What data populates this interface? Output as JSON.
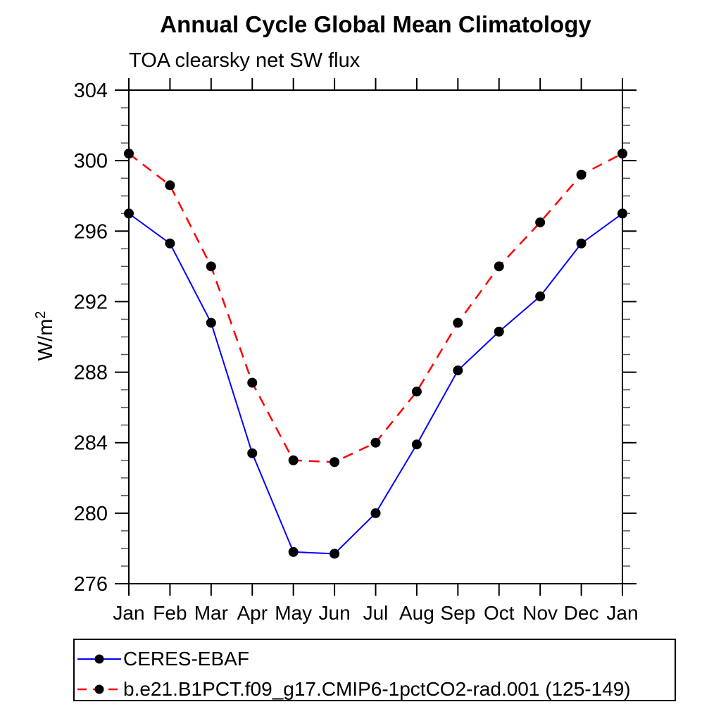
{
  "chart_data": {
    "type": "line",
    "title": "Annual Cycle Global Mean Climatology",
    "subtitle": "TOA clearsky net SW flux",
    "ylabel": "W/m²",
    "xlabel": "",
    "x_categories": [
      "Jan",
      "Feb",
      "Mar",
      "Apr",
      "May",
      "Jun",
      "Jul",
      "Aug",
      "Sep",
      "Oct",
      "Nov",
      "Dec",
      "Jan"
    ],
    "ylim": [
      276,
      304
    ],
    "ytick_major": [
      276,
      280,
      284,
      288,
      292,
      296,
      300,
      304
    ],
    "ytick_minor_step": 1,
    "grid": "off",
    "legend_position": "bottom-left",
    "series": [
      {
        "name": "CERES-EBAF",
        "color": "#0000ff",
        "line_style": "solid",
        "marker": "filled-circle",
        "marker_color": "#000000",
        "values": [
          297.0,
          295.3,
          290.8,
          283.4,
          277.8,
          277.7,
          280.0,
          283.9,
          288.1,
          290.3,
          292.3,
          295.3,
          297.0
        ]
      },
      {
        "name": "b.e21.B1PCT.f09_g17.CMIP6-1pctCO2-rad.001 (125-149)",
        "color": "#ff0000",
        "line_style": "dashed",
        "marker": "filled-circle",
        "marker_color": "#000000",
        "values": [
          300.4,
          298.6,
          294.0,
          287.4,
          283.0,
          282.9,
          284.0,
          286.9,
          290.8,
          294.0,
          296.5,
          299.2,
          300.4
        ]
      }
    ]
  }
}
